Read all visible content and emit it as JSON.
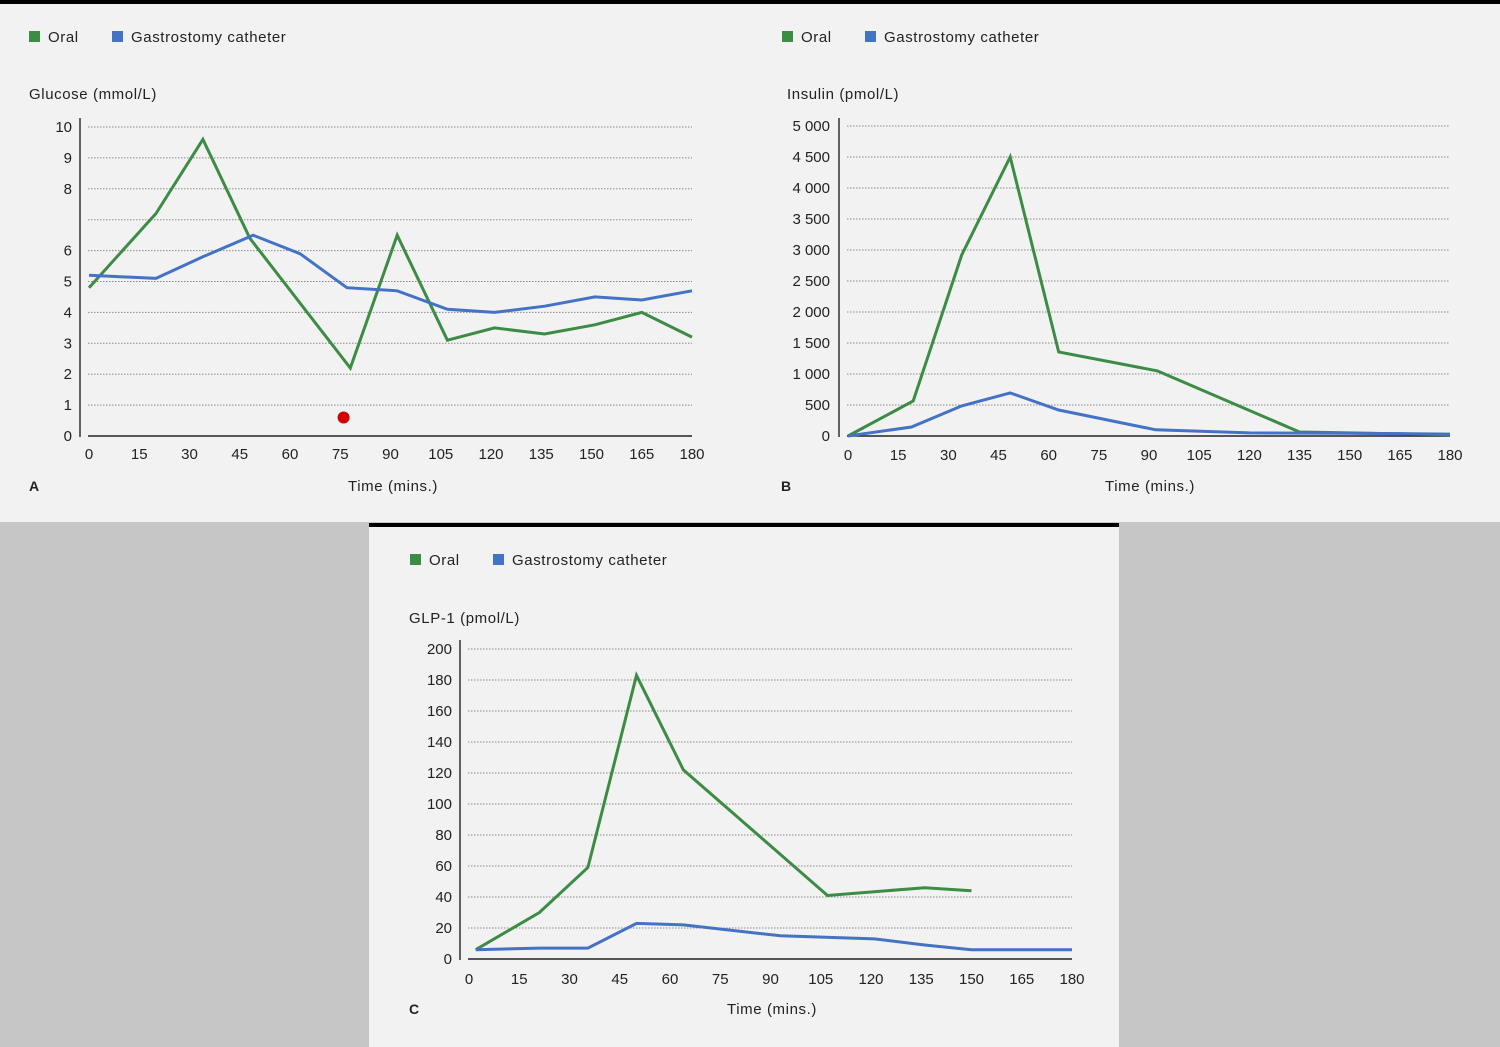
{
  "colors": {
    "oral": "#3c8c45",
    "gastrostomy": "#4472c4",
    "marker": "#d00000"
  },
  "chart_data": [
    {
      "type": "line",
      "panel_label": "A",
      "legend": [
        "Oral",
        "Gastrostomy catheter"
      ],
      "legend_placement": "top-left",
      "ylabel": "Glucose (mmol/L)",
      "xlabel": "Time (mins.)",
      "xlim": [
        0,
        180
      ],
      "x_ticks": [
        "0",
        "15",
        "30",
        "45",
        "60",
        "75",
        "90",
        "105",
        "120",
        "135",
        "150",
        "165",
        "180"
      ],
      "ylim": [
        0,
        10
      ],
      "y_ticks": [
        "0",
        "1",
        "2",
        "3",
        "4",
        "5",
        "6",
        "8",
        "9",
        "10"
      ],
      "y_tick_positions": [
        0,
        1,
        2,
        3,
        4,
        5,
        6,
        7,
        8,
        9,
        10
      ],
      "y_tick_labels_by_position": [
        "0",
        "1",
        "2",
        "3",
        "4",
        "5",
        "6",
        "",
        "8",
        "9",
        "10"
      ],
      "grid": true,
      "series": [
        {
          "name": "Oral",
          "x": [
            0,
            20,
            34,
            48,
            78,
            92,
            107,
            121,
            136,
            151,
            165,
            180
          ],
          "y": [
            4.8,
            7.2,
            9.6,
            6.4,
            2.2,
            6.5,
            3.1,
            3.5,
            3.3,
            3.6,
            4.0,
            3.2
          ]
        },
        {
          "name": "Gastrostomy catheter",
          "x": [
            0,
            20,
            34,
            49,
            63,
            77,
            92,
            107,
            121,
            136,
            151,
            165,
            180
          ],
          "y": [
            5.2,
            5.1,
            5.8,
            6.5,
            5.9,
            4.8,
            4.7,
            4.1,
            4.0,
            4.2,
            4.5,
            4.4,
            4.7
          ]
        }
      ],
      "annotations": [
        {
          "type": "point",
          "x": 76,
          "y": 0.6,
          "color": "#d00000"
        }
      ]
    },
    {
      "type": "line",
      "panel_label": "B",
      "legend": [
        "Oral",
        "Gastrostomy catheter"
      ],
      "legend_placement": "top-left",
      "ylabel": "Insulin (pmol/L)",
      "xlabel": "Time (mins.)",
      "xlim": [
        0,
        180
      ],
      "x_ticks": [
        "0",
        "15",
        "30",
        "45",
        "60",
        "75",
        "90",
        "105",
        "120",
        "135",
        "150",
        "165",
        "180"
      ],
      "ylim": [
        0,
        5000
      ],
      "y_ticks": [
        "0",
        "500",
        "1 000",
        "1 500",
        "2 000",
        "2 500",
        "3 000",
        "3 500",
        "4 000",
        "4 500",
        "5 000"
      ],
      "grid": true,
      "series": [
        {
          "name": "Oral",
          "x": [
            0,
            19.5,
            34,
            48.5,
            63,
            92.5,
            135,
            150,
            180
          ],
          "y": [
            0,
            565,
            2920,
            4500,
            1355,
            1050,
            65,
            50,
            20
          ]
        },
        {
          "name": "Gastrostomy catheter",
          "x": [
            0,
            19,
            34,
            48.5,
            63,
            92,
            120,
            150,
            180
          ],
          "y": [
            0,
            145,
            485,
            695,
            420,
            100,
            50,
            45,
            30
          ]
        }
      ]
    },
    {
      "type": "line",
      "panel_label": "C",
      "legend": [
        "Oral",
        "Gastrostomy catheter"
      ],
      "legend_placement": "top-left",
      "ylabel": "GLP-1 (pmol/L)",
      "xlabel": "Time (mins.)",
      "xlim": [
        0,
        180
      ],
      "x_ticks": [
        "0",
        "15",
        "30",
        "45",
        "60",
        "75",
        "90",
        "105",
        "120",
        "135",
        "150",
        "165",
        "180"
      ],
      "ylim": [
        0,
        200
      ],
      "y_ticks": [
        "0",
        "20",
        "40",
        "60",
        "80",
        "100",
        "120",
        "140",
        "160",
        "180",
        "200"
      ],
      "grid": true,
      "series": [
        {
          "name": "Oral",
          "x": [
            2,
            21,
            35.5,
            50,
            64,
            107,
            136,
            150
          ],
          "y": [
            6,
            30,
            59,
            183,
            122,
            41,
            46,
            44
          ]
        },
        {
          "name": "Gastrostomy catheter",
          "x": [
            2,
            21,
            35.5,
            50,
            64,
            93,
            121,
            136,
            150,
            180
          ],
          "y": [
            6,
            7,
            7,
            23,
            22,
            15,
            13,
            9,
            6,
            6
          ]
        }
      ]
    }
  ]
}
